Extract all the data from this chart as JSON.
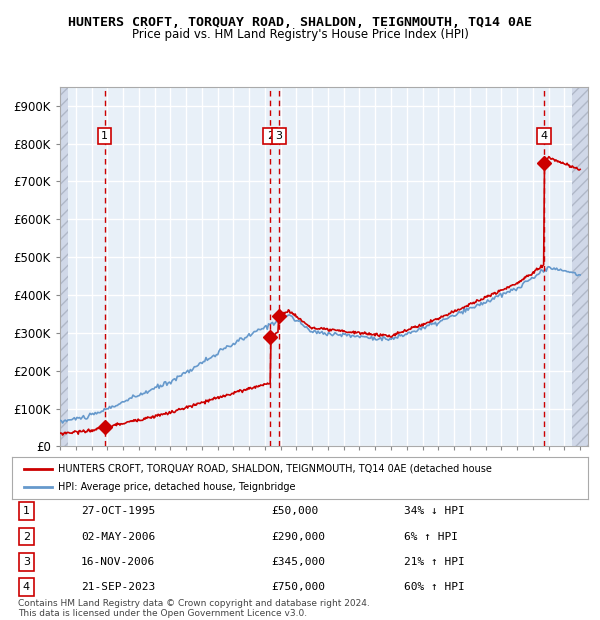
{
  "title": "HUNTERS CROFT, TORQUAY ROAD, SHALDON, TEIGNMOUTH, TQ14 0AE",
  "subtitle": "Price paid vs. HM Land Registry's House Price Index (HPI)",
  "xlim": [
    1993.0,
    2026.5
  ],
  "ylim": [
    0,
    950000
  ],
  "yticks": [
    0,
    100000,
    200000,
    300000,
    400000,
    500000,
    600000,
    700000,
    800000,
    900000
  ],
  "ytick_labels": [
    "£0",
    "£100K",
    "£200K",
    "£300K",
    "£400K",
    "£500K",
    "£600K",
    "£700K",
    "£800K",
    "£900K"
  ],
  "xticks": [
    1993,
    1994,
    1995,
    1996,
    1997,
    1998,
    1999,
    2000,
    2001,
    2002,
    2003,
    2004,
    2005,
    2006,
    2007,
    2008,
    2009,
    2010,
    2011,
    2012,
    2013,
    2014,
    2015,
    2016,
    2017,
    2018,
    2019,
    2020,
    2021,
    2022,
    2023,
    2024,
    2025,
    2026
  ],
  "sale_color": "#cc0000",
  "hpi_color": "#6699cc",
  "background_color": "#e8f0f8",
  "grid_color": "#ffffff",
  "sales": [
    {
      "year": 1995.83,
      "price": 50000,
      "label": "1"
    },
    {
      "year": 2006.34,
      "price": 290000,
      "label": "2"
    },
    {
      "year": 2006.88,
      "price": 345000,
      "label": "3"
    },
    {
      "year": 2023.72,
      "price": 750000,
      "label": "4"
    }
  ],
  "table_rows": [
    {
      "num": "1",
      "date": "27-OCT-1995",
      "price": "£50,000",
      "hpi": "34% ↓ HPI"
    },
    {
      "num": "2",
      "date": "02-MAY-2006",
      "price": "£290,000",
      "hpi": "6% ↑ HPI"
    },
    {
      "num": "3",
      "date": "16-NOV-2006",
      "price": "£345,000",
      "hpi": "21% ↑ HPI"
    },
    {
      "num": "4",
      "date": "21-SEP-2023",
      "price": "£750,000",
      "hpi": "60% ↑ HPI"
    }
  ],
  "legend_red_label": "HUNTERS CROFT, TORQUAY ROAD, SHALDON, TEIGNMOUTH, TQ14 0AE (detached house",
  "legend_blue_label": "HPI: Average price, detached house, Teignbridge",
  "footnote": "Contains HM Land Registry data © Crown copyright and database right 2024.\nThis data is licensed under the Open Government Licence v3.0."
}
